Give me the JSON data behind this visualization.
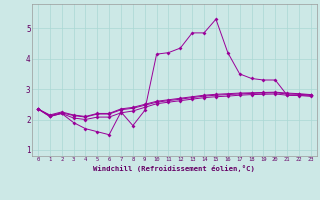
{
  "xlabel": "Windchill (Refroidissement éolien,°C)",
  "background_color": "#cce8e6",
  "line_color": "#990099",
  "grid_color": "#aad8d4",
  "x_values": [
    0,
    1,
    2,
    3,
    4,
    5,
    6,
    7,
    8,
    9,
    10,
    11,
    12,
    13,
    14,
    15,
    16,
    17,
    18,
    19,
    20,
    21,
    22,
    23
  ],
  "line1": [
    2.35,
    2.1,
    2.2,
    1.9,
    1.7,
    1.6,
    1.5,
    2.25,
    1.8,
    2.3,
    4.15,
    4.2,
    4.35,
    4.85,
    4.85,
    5.3,
    4.2,
    3.5,
    3.35,
    3.3,
    3.3,
    2.8,
    2.8,
    2.8
  ],
  "line2": [
    2.35,
    2.15,
    2.25,
    2.15,
    2.1,
    2.2,
    2.2,
    2.35,
    2.4,
    2.5,
    2.6,
    2.65,
    2.7,
    2.75,
    2.8,
    2.83,
    2.85,
    2.87,
    2.88,
    2.89,
    2.9,
    2.87,
    2.85,
    2.82
  ],
  "line3": [
    2.35,
    2.13,
    2.22,
    2.13,
    2.08,
    2.18,
    2.18,
    2.32,
    2.37,
    2.47,
    2.57,
    2.62,
    2.67,
    2.72,
    2.77,
    2.8,
    2.82,
    2.84,
    2.86,
    2.87,
    2.88,
    2.84,
    2.83,
    2.8
  ],
  "line4": [
    2.35,
    2.1,
    2.2,
    2.05,
    2.0,
    2.08,
    2.08,
    2.22,
    2.28,
    2.4,
    2.52,
    2.57,
    2.62,
    2.67,
    2.72,
    2.75,
    2.77,
    2.8,
    2.82,
    2.83,
    2.84,
    2.8,
    2.79,
    2.76
  ],
  "ylim": [
    0.8,
    5.8
  ],
  "yticks": [
    1,
    2,
    3,
    4,
    5
  ],
  "xlim": [
    -0.5,
    23.5
  ],
  "xtick_labels": [
    "0",
    "1",
    "2",
    "3",
    "4",
    "5",
    "6",
    "7",
    "8",
    "9",
    "10",
    "11",
    "12",
    "13",
    "14",
    "15",
    "16",
    "17",
    "18",
    "19",
    "20",
    "21",
    "22",
    "23"
  ]
}
